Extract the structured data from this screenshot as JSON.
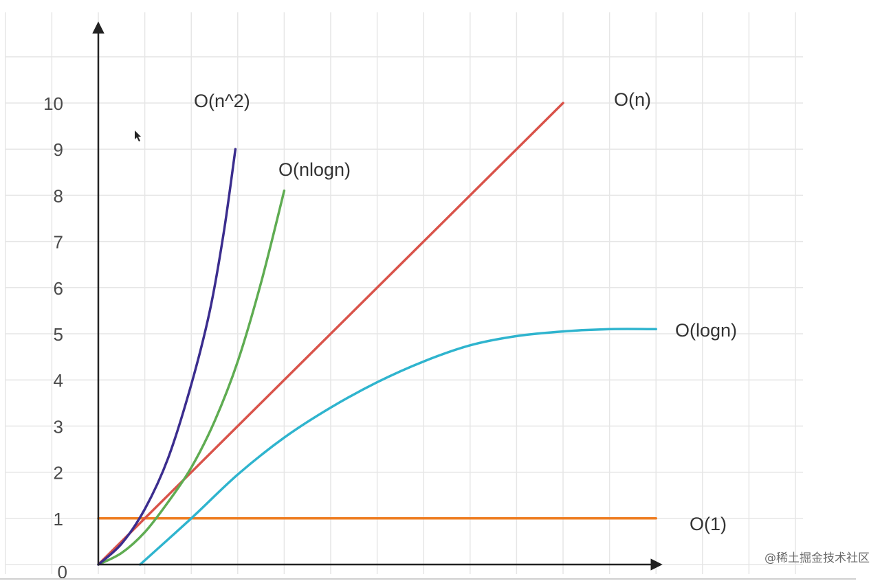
{
  "chart_data": {
    "type": "line",
    "title": "",
    "xlabel": "",
    "ylabel": "",
    "ylim": [
      0,
      10
    ],
    "xlim": [
      0,
      12
    ],
    "grid": true,
    "y_ticks": [
      "0",
      "1",
      "2",
      "3",
      "4",
      "5",
      "6",
      "7",
      "8",
      "9",
      "10"
    ],
    "series": [
      {
        "name": "O(1)",
        "color": "#ee7d22",
        "x": [
          0,
          12
        ],
        "y": [
          1,
          1
        ]
      },
      {
        "name": "O(logn)",
        "color": "#2fb4ce",
        "x": [
          0.9,
          2.0,
          3.0,
          4.0,
          5.0,
          6.0,
          7.0,
          8.0,
          9.0,
          10.0,
          11.0,
          12.0
        ],
        "y": [
          0.0,
          1.0,
          1.95,
          2.75,
          3.4,
          3.95,
          4.4,
          4.75,
          4.95,
          5.05,
          5.1,
          5.1
        ]
      },
      {
        "name": "O(n)",
        "color": "#d9534a",
        "x": [
          0,
          10
        ],
        "y": [
          0,
          10
        ]
      },
      {
        "name": "O(nlogn)",
        "color": "#5fac52",
        "x": [
          0,
          0.5,
          1.0,
          1.5,
          2.0,
          2.5,
          3.0,
          3.5,
          4.0
        ],
        "y": [
          0,
          0.25,
          0.7,
          1.35,
          2.1,
          3.1,
          4.4,
          6.1,
          8.1
        ]
      },
      {
        "name": "O(n^2)",
        "color": "#3b2d8e",
        "x": [
          0,
          0.5,
          1.0,
          1.5,
          2.0,
          2.4,
          2.7,
          2.95
        ],
        "y": [
          0,
          0.45,
          1.2,
          2.3,
          3.9,
          5.5,
          7.2,
          9.0
        ]
      }
    ]
  },
  "watermark": "@稀土掘金技术社区"
}
